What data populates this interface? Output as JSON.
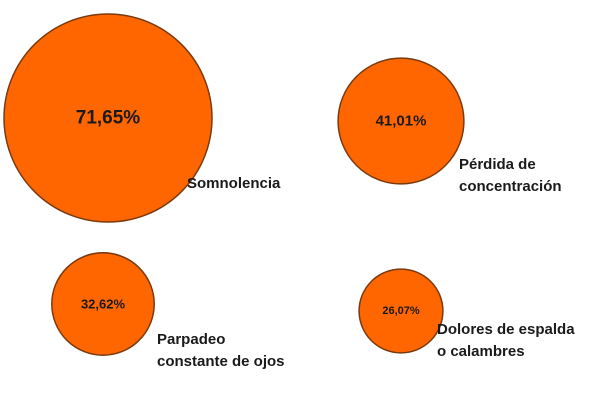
{
  "chart_data": {
    "type": "bubble",
    "title": "",
    "items": [
      {
        "category": "Somnolencia",
        "value": 71.65,
        "value_label": "71,65%",
        "label_lines": [
          "Somnolencia"
        ]
      },
      {
        "category": "Pérdida de concentración",
        "value": 41.01,
        "value_label": "41,01%",
        "label_lines": [
          "Pérdida de",
          "concentración"
        ]
      },
      {
        "category": "Parpadeo constante de ojos",
        "value": 32.62,
        "value_label": "32,62%",
        "label_lines": [
          "Parpadeo",
          "constante de ojos"
        ]
      },
      {
        "category": "Dolores de espalda o calambres",
        "value": 26.07,
        "value_label": "26,07%",
        "label_lines": [
          "Dolores de espalda",
          "o calambres"
        ]
      }
    ],
    "colors": {
      "fill": "#FF6600",
      "stroke": "#7a3a10"
    }
  }
}
